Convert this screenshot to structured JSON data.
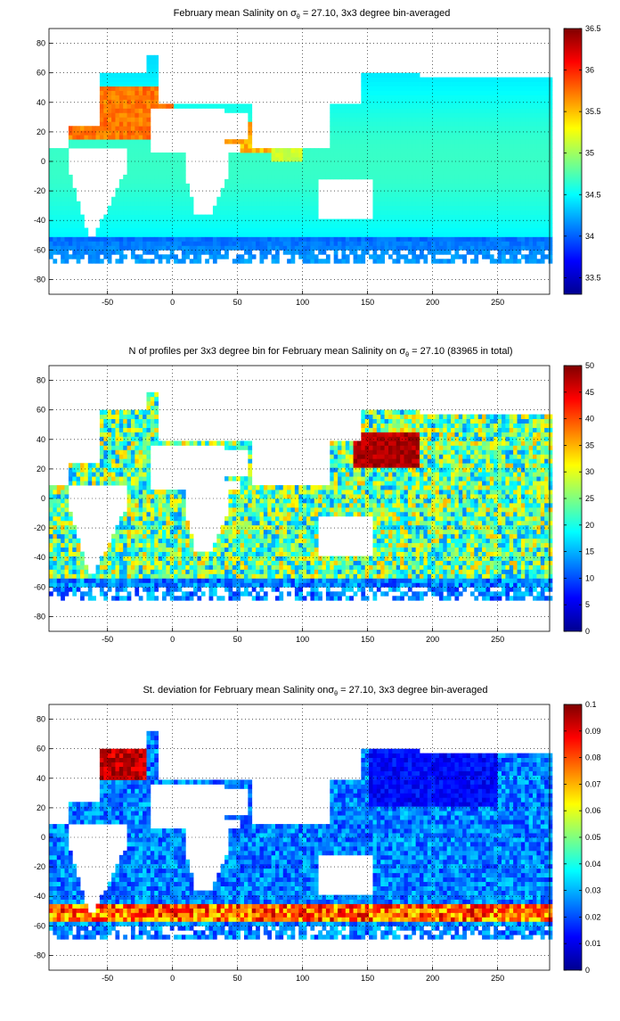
{
  "chart_data": [
    {
      "type": "heatmap",
      "title": "February mean Salinity on σθ = 27.10, 3x3 degree bin-averaged",
      "title_parts": [
        "February mean Salinity on ",
        "σ",
        "θ",
        " = 27.10, 3x3 degree bin-averaged"
      ],
      "x_ticks": [
        -50,
        0,
        50,
        100,
        150,
        200,
        250
      ],
      "y_ticks": [
        80,
        60,
        40,
        20,
        0,
        -20,
        -40,
        -60,
        -80
      ],
      "xlim": [
        -95,
        290
      ],
      "ylim": [
        -90,
        90
      ],
      "colorbar": {
        "min": 33.3,
        "max": 36.5,
        "ticks": [
          "36.5",
          "36",
          "35.5",
          "35",
          "34.5",
          "34",
          "33.5"
        ],
        "tick_values": [
          36.5,
          36,
          35.5,
          35,
          34.5,
          34,
          33.5
        ]
      },
      "grid": true,
      "colormap": "jet"
    },
    {
      "type": "heatmap",
      "title": "N of profiles per 3x3 degree bin for February mean Salinity on σθ = 27.10 (83965 in total)",
      "title_parts": [
        "N of profiles per 3x3 degree bin for February mean Salinity on ",
        "σ",
        "θ",
        " = 27.10 (83965 in total)"
      ],
      "x_ticks": [
        -50,
        0,
        50,
        100,
        150,
        200,
        250
      ],
      "y_ticks": [
        80,
        60,
        40,
        20,
        0,
        -20,
        -40,
        -60,
        -80
      ],
      "xlim": [
        -95,
        290
      ],
      "ylim": [
        -90,
        90
      ],
      "colorbar": {
        "min": 0,
        "max": 50,
        "ticks": [
          "50",
          "45",
          "40",
          "35",
          "30",
          "25",
          "20",
          "15",
          "10",
          "5",
          "0"
        ],
        "tick_values": [
          50,
          45,
          40,
          35,
          30,
          25,
          20,
          15,
          10,
          5,
          0
        ]
      },
      "grid": true,
      "colormap": "jet"
    },
    {
      "type": "heatmap",
      "title": "St. deviation for February mean Salinity onσθ = 27.10, 3x3 degree bin-averaged",
      "title_parts": [
        "St. deviation for February mean Salinity on",
        "σ",
        "θ",
        " = 27.10, 3x3 degree bin-averaged"
      ],
      "x_ticks": [
        -50,
        0,
        50,
        100,
        150,
        200,
        250
      ],
      "y_ticks": [
        80,
        60,
        40,
        20,
        0,
        -20,
        -40,
        -60,
        -80
      ],
      "xlim": [
        -95,
        290
      ],
      "ylim": [
        -90,
        90
      ],
      "colorbar": {
        "min": 0,
        "max": 0.1,
        "ticks": [
          "0.1",
          "0.09",
          "0.08",
          "0.07",
          "0.06",
          "0.05",
          "0.04",
          "0.03",
          "0.02",
          "0.01",
          "0"
        ],
        "tick_values": [
          0.1,
          0.09,
          0.08,
          0.07,
          0.06,
          0.05,
          0.04,
          0.03,
          0.02,
          0.01,
          0
        ]
      },
      "grid": true,
      "colormap": "jet"
    }
  ]
}
